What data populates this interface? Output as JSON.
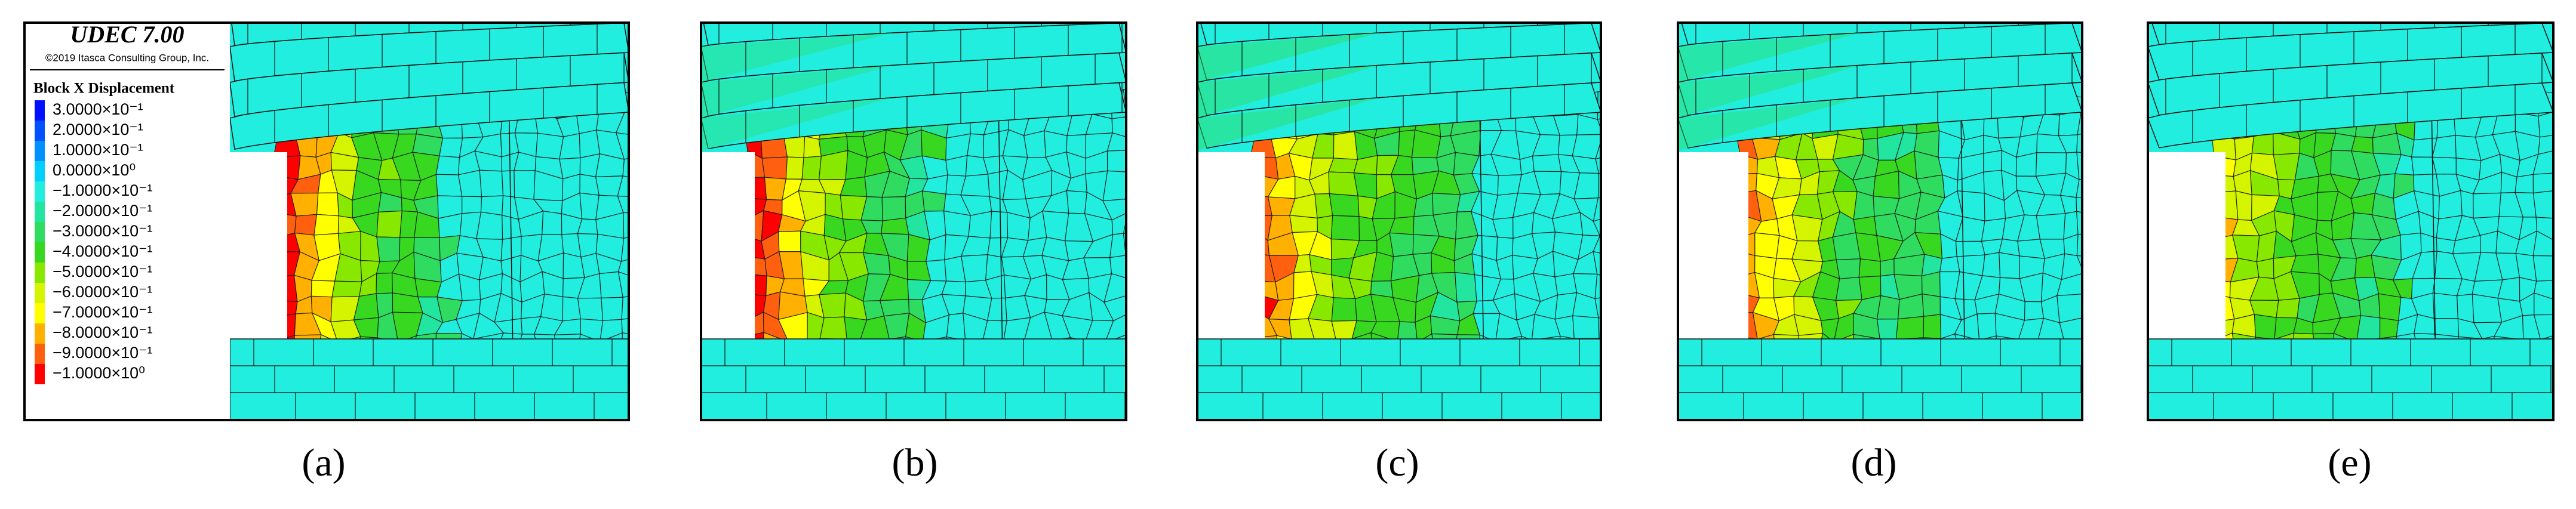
{
  "legend": {
    "title": "UDEC 7.00",
    "copyright": "©2019 Itasca Consulting Group, Inc.",
    "quantity": "Block X Displacement",
    "entries": [
      {
        "label": "3.0000×10⁻¹",
        "color": "#0010ff"
      },
      {
        "label": "2.0000×10⁻¹",
        "color": "#0050ff"
      },
      {
        "label": "1.0000×10⁻¹",
        "color": "#0090ff"
      },
      {
        "label": "0.0000×10⁰",
        "color": "#00d0ff"
      },
      {
        "label": "−1.0000×10⁻¹",
        "color": "#22eee0"
      },
      {
        "label": "−2.0000×10⁻¹",
        "color": "#22e6a0"
      },
      {
        "label": "−3.0000×10⁻¹",
        "color": "#30dc60"
      },
      {
        "label": "−4.0000×10⁻¹",
        "color": "#38d820"
      },
      {
        "label": "−5.0000×10⁻¹",
        "color": "#88e800"
      },
      {
        "label": "−6.0000×10⁻¹",
        "color": "#d4f400"
      },
      {
        "label": "−7.0000×10⁻¹",
        "color": "#ffff00"
      },
      {
        "label": "−8.0000×10⁻¹",
        "color": "#ffb000"
      },
      {
        "label": "−9.0000×10⁻¹",
        "color": "#ff6010"
      },
      {
        "label": "−1.0000×10⁰",
        "color": "#ff0000"
      }
    ]
  },
  "panels": [
    {
      "label": "(a)"
    },
    {
      "label": "(b)"
    },
    {
      "label": "(c)"
    },
    {
      "label": "(d)"
    },
    {
      "label": "(e)"
    }
  ]
}
